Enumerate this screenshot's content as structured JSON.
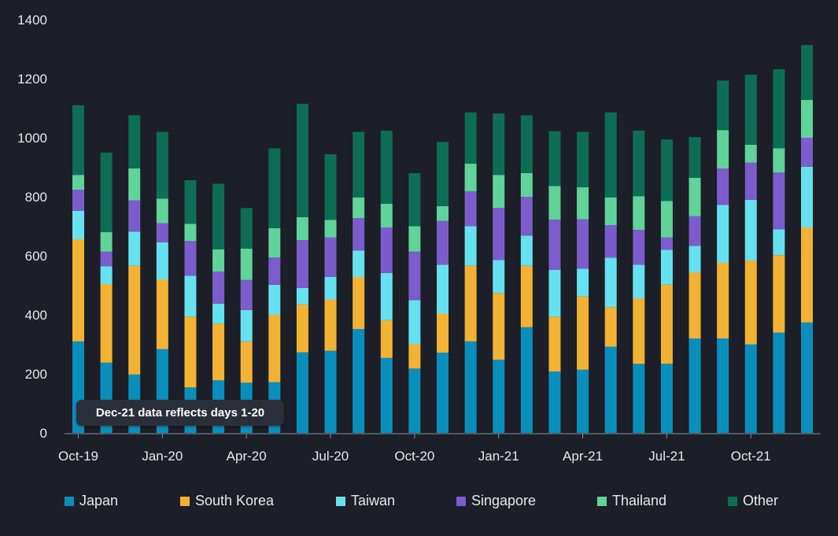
{
  "chart_data": {
    "type": "bar",
    "stacked": true,
    "categories": [
      "Oct-19",
      "Nov-19",
      "Dec-19",
      "Jan-20",
      "Feb-20",
      "Mar-20",
      "Apr-20",
      "May-20",
      "Jun-20",
      "Jul-20",
      "Aug-20",
      "Sep-20",
      "Oct-20",
      "Nov-20",
      "Dec-20",
      "Jan-21",
      "Feb-21",
      "Mar-21",
      "Apr-21",
      "May-21",
      "Jun-21",
      "Jul-21",
      "Aug-21",
      "Sep-21",
      "Oct-21",
      "Nov-21",
      "Dec-21"
    ],
    "x_tick_labels": [
      "Oct-19",
      "Jan-20",
      "Apr-20",
      "Jul-20",
      "Oct-20",
      "Jan-21",
      "Apr-21",
      "Jul-21",
      "Oct-21"
    ],
    "ylim": [
      0,
      1400
    ],
    "y_ticks": [
      0,
      200,
      400,
      600,
      800,
      1000,
      1200,
      1400
    ],
    "series": [
      {
        "name": "Japan",
        "color": "#0a8fbd",
        "values": [
          310,
          238,
          198,
          284,
          154,
          178,
          170,
          172,
          273,
          278,
          352,
          254,
          218,
          272,
          310,
          248,
          358,
          208,
          214,
          292,
          234,
          234,
          320,
          320,
          300,
          340,
          374
        ]
      },
      {
        "name": "South Korea",
        "color": "#f2b233",
        "values": [
          346,
          266,
          368,
          236,
          240,
          192,
          140,
          228,
          162,
          174,
          176,
          128,
          82,
          132,
          256,
          226,
          208,
          186,
          248,
          134,
          222,
          268,
          224,
          256,
          284,
          262,
          322
        ]
      },
      {
        "name": "Taiwan",
        "color": "#66e1ef",
        "values": [
          96,
          60,
          116,
          126,
          138,
          68,
          106,
          102,
          56,
          76,
          90,
          160,
          150,
          166,
          134,
          112,
          102,
          158,
          94,
          168,
          114,
          118,
          90,
          196,
          206,
          88,
          206
        ]
      },
      {
        "name": "Singapore",
        "color": "#7b5ccc",
        "values": [
          72,
          50,
          106,
          64,
          118,
          108,
          102,
          92,
          162,
          134,
          110,
          154,
          164,
          148,
          118,
          176,
          132,
          170,
          168,
          110,
          118,
          42,
          100,
          124,
          126,
          192,
          98
        ]
      },
      {
        "name": "Thailand",
        "color": "#5fd39a",
        "values": [
          50,
          66,
          108,
          84,
          58,
          76,
          106,
          100,
          78,
          60,
          70,
          80,
          86,
          50,
          94,
          112,
          80,
          114,
          108,
          94,
          114,
          124,
          130,
          130,
          60,
          82,
          128
        ]
      },
      {
        "name": "Other",
        "color": "#0d6e55",
        "values": [
          236,
          270,
          180,
          226,
          148,
          222,
          138,
          270,
          384,
          222,
          222,
          248,
          180,
          218,
          174,
          208,
          196,
          186,
          188,
          288,
          222,
          208,
          138,
          168,
          238,
          268,
          186
        ]
      }
    ],
    "legend_position": "bottom",
    "annotation": "Dec-21 data reflects days 1-20"
  }
}
